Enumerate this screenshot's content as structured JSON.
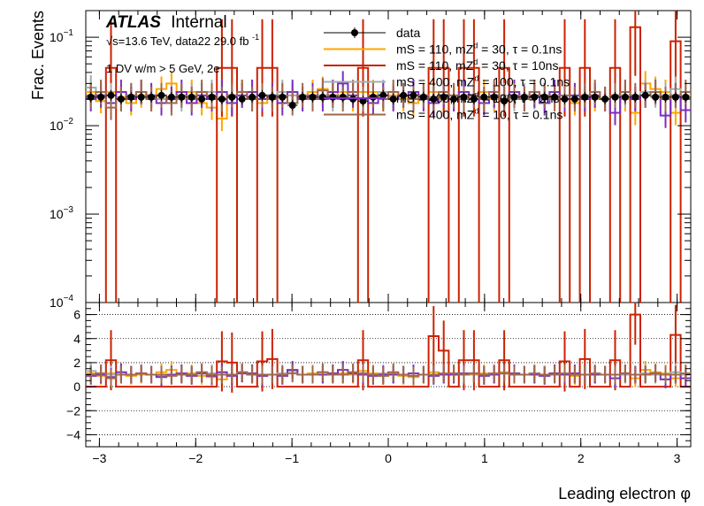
{
  "chart_data": {
    "type": "line",
    "title": "",
    "atlas": {
      "brand": "ATLAS",
      "tag": "Internal"
    },
    "energy_text": "√s=13.6 TeV, data22 29.0 fb",
    "energy_superscript": "-1",
    "selection_text": "1 DV w/m > 5 GeV, 2e",
    "xlabel": "Leading electron φ",
    "ylabel": "Frac. Events",
    "xlim": [
      -3.1416,
      3.1416
    ],
    "top_ylim": [
      0.0001,
      0.2
    ],
    "top_scale": "log",
    "ratio_ylim": [
      -5,
      7
    ],
    "x_ticks": [
      -3,
      -2,
      -1,
      0,
      1,
      2,
      3
    ],
    "x_tick_labels": [
      "−3",
      "−2",
      "−1",
      "0",
      "1",
      "2",
      "3"
    ],
    "top_y_ticks": [
      {
        "value": 0.1,
        "base": "10",
        "exp": "−1"
      },
      {
        "value": 0.01,
        "base": "10",
        "exp": "−2"
      },
      {
        "value": 0.001,
        "base": "10",
        "exp": "−3"
      },
      {
        "value": 0.0001,
        "base": "10",
        "exp": "−4"
      }
    ],
    "ratio_y_ticks": [
      -4,
      -2,
      0,
      2,
      4,
      6
    ],
    "ratio_y_tick_labels": [
      "−4",
      "−2",
      "0",
      "2",
      "4",
      "6"
    ],
    "ratio_gridlines": [
      -4,
      -2,
      0,
      2,
      4,
      6
    ],
    "n_bins": 60,
    "legend_placement": "top-right",
    "data": {
      "name": "data",
      "color": "#000000",
      "values": [
        0.021,
        0.021,
        0.022,
        0.02,
        0.021,
        0.021,
        0.021,
        0.022,
        0.021,
        0.021,
        0.021,
        0.02,
        0.021,
        0.02,
        0.021,
        0.02,
        0.021,
        0.022,
        0.021,
        0.021,
        0.017,
        0.021,
        0.021,
        0.021,
        0.021,
        0.021,
        0.02,
        0.019,
        0.021,
        0.022,
        0.02,
        0.022,
        0.022,
        0.021,
        0.02,
        0.021,
        0.02,
        0.021,
        0.02,
        0.021,
        0.021,
        0.019,
        0.021,
        0.021,
        0.021,
        0.021,
        0.021,
        0.02,
        0.02,
        0.021,
        0.021,
        0.02,
        0.021,
        0.021,
        0.021,
        0.022,
        0.021,
        0.021,
        0.021,
        0.021
      ]
    },
    "series": [
      {
        "name": "mS = 110, mZ",
        "subscript": "d",
        "name_tail": " = 30, τ = 0.1ns",
        "color": "#ffa500",
        "values": [
          0.024,
          0.019,
          0.024,
          0.021,
          0.018,
          0.022,
          0.02,
          0.026,
          0.03,
          0.022,
          0.024,
          0.018,
          0.016,
          0.012,
          0.022,
          0.024,
          0.02,
          0.018,
          0.02,
          0.021,
          0.022,
          0.02,
          0.024,
          0.026,
          0.022,
          0.024,
          0.02,
          0.024,
          0.024,
          0.02,
          0.022,
          0.02,
          0.018,
          0.022,
          0.024,
          0.02,
          0.022,
          0.02,
          0.02,
          0.024,
          0.02,
          0.022,
          0.024,
          0.02,
          0.022,
          0.02,
          0.024,
          0.02,
          0.018,
          0.022,
          0.02,
          0.02,
          0.022,
          0.02,
          0.014,
          0.03,
          0.026,
          0.024,
          0.014,
          0.02
        ],
        "ratio": [
          1.1,
          0.9,
          1.1,
          1.0,
          0.9,
          1.0,
          1.0,
          1.2,
          1.4,
          1.1,
          1.1,
          0.9,
          0.8,
          0.6,
          1.0,
          1.2,
          1.0,
          0.9,
          1.0,
          1.0,
          1.3,
          1.0,
          1.1,
          1.2,
          1.1,
          1.1,
          1.0,
          1.3,
          1.1,
          0.9,
          1.1,
          0.9,
          0.8,
          1.0,
          1.2,
          1.0,
          1.1,
          1.0,
          1.0,
          1.1,
          1.0,
          1.2,
          1.1,
          1.0,
          1.0,
          1.0,
          1.1,
          1.0,
          0.9,
          1.0,
          1.0,
          1.0,
          1.0,
          1.0,
          0.7,
          1.4,
          1.2,
          1.1,
          0.7,
          1.0
        ]
      },
      {
        "name": "mS = 110, mZ",
        "subscript": "d",
        "name_tail": " = 30, τ = 10ns",
        "color": "#cc2200",
        "values": [
          1e-05,
          1e-05,
          0.045,
          1e-05,
          1e-05,
          1e-05,
          1e-05,
          1e-05,
          1e-05,
          1e-05,
          1e-05,
          1e-05,
          1e-05,
          0.045,
          0.045,
          1e-05,
          1e-05,
          0.045,
          0.045,
          1e-05,
          1e-05,
          1e-05,
          1e-05,
          1e-05,
          1e-05,
          1e-05,
          1e-05,
          0.045,
          1e-05,
          1e-05,
          1e-05,
          1e-05,
          1e-05,
          1e-05,
          0.045,
          0.045,
          1e-05,
          0.045,
          0.045,
          1e-05,
          1e-05,
          0.045,
          1e-05,
          1e-05,
          1e-05,
          1e-05,
          1e-05,
          0.045,
          1e-05,
          0.045,
          1e-05,
          1e-05,
          0.045,
          1e-05,
          0.13,
          1e-05,
          1e-05,
          1e-05,
          0.09,
          1e-05
        ],
        "ratio": [
          0,
          0,
          2.2,
          0,
          0,
          0,
          0,
          0,
          0,
          0,
          0,
          0,
          0,
          2.1,
          2.0,
          0,
          0,
          2.1,
          2.3,
          0,
          0,
          0,
          0,
          0,
          0,
          0,
          0,
          2.2,
          0,
          0,
          0,
          0,
          0,
          0,
          4.2,
          3.0,
          0,
          2.2,
          2.2,
          0,
          0,
          2.2,
          0,
          0,
          0,
          0,
          0,
          2.1,
          0,
          2.3,
          0,
          0,
          2.2,
          0,
          6.0,
          0,
          0,
          0,
          4.3,
          0
        ]
      },
      {
        "name": "mS = 400, mZ",
        "subscript": "d",
        "name_tail": " = 100, τ = 0.1ns",
        "color": "#9fb0b0",
        "values": [
          0.027,
          0.024,
          0.022,
          0.02,
          0.022,
          0.024,
          0.022,
          0.02,
          0.021,
          0.02,
          0.022,
          0.022,
          0.024,
          0.02,
          0.021,
          0.022,
          0.024,
          0.02,
          0.022,
          0.024,
          0.022,
          0.02,
          0.021,
          0.022,
          0.02,
          0.022,
          0.022,
          0.02,
          0.021,
          0.024,
          0.021,
          0.022,
          0.02,
          0.022,
          0.021,
          0.022,
          0.02,
          0.022,
          0.022,
          0.02,
          0.021,
          0.022,
          0.02,
          0.022,
          0.021,
          0.02,
          0.022,
          0.02,
          0.022,
          0.021,
          0.022,
          0.02,
          0.021,
          0.022,
          0.02,
          0.024,
          0.022,
          0.022,
          0.026,
          0.022
        ],
        "ratio": [
          1.3,
          1.1,
          1.0,
          1.0,
          1.0,
          1.1,
          1.0,
          0.9,
          1.0,
          1.0,
          1.0,
          1.1,
          1.1,
          1.0,
          1.0,
          1.1,
          1.1,
          0.9,
          1.0,
          1.1,
          1.3,
          1.0,
          1.0,
          1.0,
          1.0,
          1.0,
          1.1,
          1.1,
          1.0,
          1.1,
          1.0,
          1.0,
          0.9,
          1.0,
          1.0,
          1.0,
          1.0,
          1.0,
          1.1,
          1.0,
          1.0,
          1.1,
          1.0,
          1.0,
          1.0,
          1.0,
          1.0,
          1.0,
          1.1,
          1.0,
          1.0,
          1.0,
          1.0,
          1.0,
          1.0,
          1.1,
          1.0,
          1.0,
          1.2,
          1.0
        ]
      },
      {
        "name": "mS = 400, mZ",
        "subscript": "d",
        "name_tail": " = 100, τ = 2ns",
        "color": "#7b2fbe",
        "values": [
          0.02,
          0.022,
          0.018,
          0.024,
          0.02,
          0.024,
          0.022,
          0.018,
          0.02,
          0.024,
          0.018,
          0.022,
          0.02,
          0.024,
          0.018,
          0.022,
          0.024,
          0.02,
          0.022,
          0.018,
          0.024,
          0.02,
          0.022,
          0.02,
          0.024,
          0.03,
          0.022,
          0.02,
          0.018,
          0.022,
          0.02,
          0.022,
          0.024,
          0.02,
          0.018,
          0.022,
          0.02,
          0.024,
          0.022,
          0.018,
          0.022,
          0.02,
          0.024,
          0.02,
          0.022,
          0.018,
          0.024,
          0.02,
          0.022,
          0.02,
          0.022,
          0.02,
          0.014,
          0.024,
          0.02,
          0.022,
          0.024,
          0.013,
          0.022,
          0.015
        ],
        "ratio": [
          0.9,
          1.0,
          0.8,
          1.2,
          1.0,
          1.1,
          1.0,
          0.8,
          1.0,
          1.1,
          0.9,
          1.1,
          0.9,
          1.2,
          0.9,
          1.1,
          1.1,
          0.9,
          1.0,
          0.9,
          1.4,
          1.0,
          1.0,
          1.0,
          1.1,
          1.4,
          1.1,
          1.0,
          0.9,
          1.0,
          1.0,
          1.0,
          1.1,
          1.0,
          0.9,
          1.0,
          1.0,
          1.1,
          1.1,
          0.9,
          1.0,
          1.1,
          1.1,
          1.0,
          1.0,
          0.9,
          1.1,
          1.0,
          1.1,
          1.0,
          1.0,
          1.0,
          0.7,
          1.1,
          1.0,
          1.0,
          1.1,
          0.6,
          1.0,
          0.7
        ]
      },
      {
        "name": "mS = 400, mZ",
        "subscript": "d",
        "name_tail": " = 10, τ = 0.1ns",
        "color": "#a0674b",
        "values": [
          0.022,
          0.024,
          0.016,
          0.02,
          0.022,
          0.024,
          0.02,
          0.022,
          0.018,
          0.022,
          0.02,
          0.024,
          0.022,
          0.02,
          0.022,
          0.024,
          0.02,
          0.022,
          0.02,
          0.022,
          0.018,
          0.022,
          0.02,
          0.025,
          0.022,
          0.02,
          0.024,
          0.02,
          0.022,
          0.02,
          0.024,
          0.022,
          0.02,
          0.022,
          0.02,
          0.024,
          0.022,
          0.02,
          0.022,
          0.02,
          0.024,
          0.02,
          0.022,
          0.02,
          0.024,
          0.022,
          0.02,
          0.022,
          0.02,
          0.022,
          0.024,
          0.02,
          0.022,
          0.024,
          0.022,
          0.022,
          0.024,
          0.02,
          0.022,
          0.024
        ],
        "ratio": [
          1.0,
          1.1,
          0.7,
          1.0,
          1.0,
          1.1,
          1.0,
          1.0,
          0.9,
          1.0,
          1.0,
          1.2,
          1.0,
          1.0,
          1.0,
          1.2,
          1.0,
          1.0,
          1.0,
          1.0,
          1.1,
          1.0,
          1.0,
          1.2,
          1.0,
          1.0,
          1.2,
          1.1,
          1.0,
          0.9,
          1.2,
          1.0,
          0.9,
          1.0,
          1.0,
          1.1,
          1.1,
          1.0,
          1.1,
          1.0,
          1.1,
          1.1,
          1.0,
          1.0,
          1.1,
          1.0,
          1.0,
          1.1,
          1.0,
          1.0,
          1.1,
          1.0,
          1.0,
          1.1,
          1.0,
          1.0,
          1.1,
          1.0,
          1.0,
          1.1
        ]
      }
    ]
  }
}
